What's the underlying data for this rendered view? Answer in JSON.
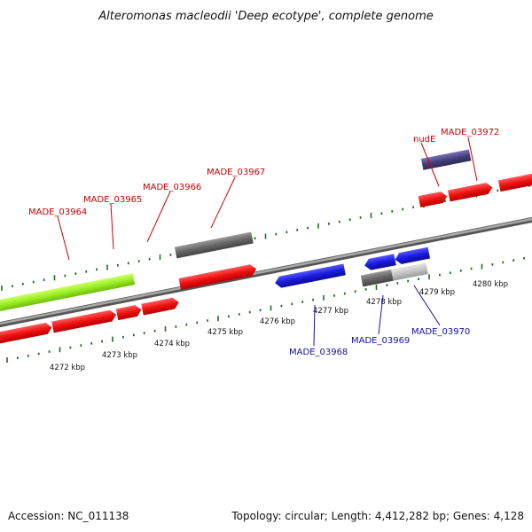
{
  "title": "Alteromonas macleodii 'Deep ecotype', complete genome",
  "footer": {
    "accession": "Accession: NC_011138",
    "summary": "Topology: circular; Length: 4,412,282 bp; Genes: 4,128"
  },
  "colors": {
    "forward_gene": "#ee1111",
    "reverse_gene": "#1a1add",
    "forward_label": "#cc0000",
    "reverse_label": "#1111aa",
    "tick": "#1e6e1e",
    "backbone": "#888888",
    "highlight_gene": "#99ee22",
    "pseudo_gene": "#666666",
    "light_gene": "#c4c4c4",
    "rna_gene": "#46407a"
  },
  "kbp_labels": [
    "4272 kbp",
    "4273 kbp",
    "4274 kbp",
    "4275 kbp",
    "4276 kbp",
    "4277 kbp",
    "4278 kbp",
    "4279 kbp",
    "4280 kbp"
  ],
  "gene_labels": {
    "forward": [
      "MADE_03964",
      "MADE_03965",
      "MADE_03966",
      "MADE_03967",
      "nudE",
      "MADE_03972"
    ],
    "reverse": [
      "MADE_03968",
      "MADE_03969",
      "MADE_03970"
    ]
  }
}
